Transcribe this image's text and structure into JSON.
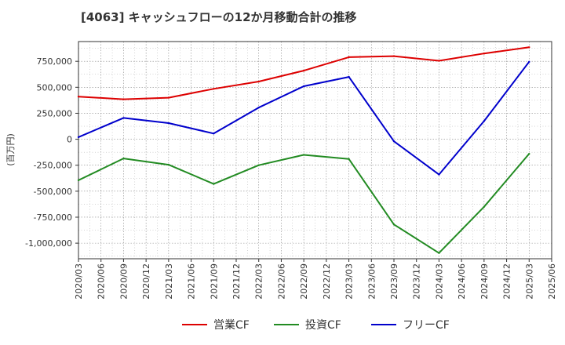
{
  "chart_data": {
    "type": "line",
    "title": "[4063]  キャッシュフローの12か月移動合計の推移",
    "ylabel": "(百万円)",
    "xlabel": "",
    "x_ticks": [
      "2020/03",
      "2020/06",
      "2020/09",
      "2020/12",
      "2021/03",
      "2021/06",
      "2021/09",
      "2021/12",
      "2022/03",
      "2022/06",
      "2022/09",
      "2022/12",
      "2023/03",
      "2023/06",
      "2023/09",
      "2023/12",
      "2024/03",
      "2024/06",
      "2024/09",
      "2024/12",
      "2025/03",
      "2025/06"
    ],
    "y_ticks": [
      {
        "value": 750000,
        "label": "750,000"
      },
      {
        "value": 500000,
        "label": "500,000"
      },
      {
        "value": 250000,
        "label": "250,000"
      },
      {
        "value": 0,
        "label": "0"
      },
      {
        "value": -250000,
        "label": "-250,000"
      },
      {
        "value": -500000,
        "label": "-500,000"
      },
      {
        "value": -750000,
        "label": "-750,000"
      },
      {
        "value": -1000000,
        "label": "-1,000,000"
      }
    ],
    "ylim": [
      -1150000,
      940000
    ],
    "x_range": [
      0,
      21
    ],
    "series": [
      {
        "name": "営業CF",
        "color": "#dd0000",
        "points": [
          {
            "x": "2020/03",
            "y": 410000
          },
          {
            "x": "2020/09",
            "y": 385000
          },
          {
            "x": "2021/03",
            "y": 400000
          },
          {
            "x": "2021/09",
            "y": 485000
          },
          {
            "x": "2022/03",
            "y": 555000
          },
          {
            "x": "2022/09",
            "y": 660000
          },
          {
            "x": "2023/03",
            "y": 790000
          },
          {
            "x": "2023/09",
            "y": 800000
          },
          {
            "x": "2024/03",
            "y": 755000
          },
          {
            "x": "2024/09",
            "y": 825000
          },
          {
            "x": "2025/03",
            "y": 885000
          }
        ]
      },
      {
        "name": "投資CF",
        "color": "#228b22",
        "points": [
          {
            "x": "2020/03",
            "y": -395000
          },
          {
            "x": "2020/09",
            "y": -185000
          },
          {
            "x": "2021/03",
            "y": -245000
          },
          {
            "x": "2021/09",
            "y": -430000
          },
          {
            "x": "2022/03",
            "y": -250000
          },
          {
            "x": "2022/09",
            "y": -150000
          },
          {
            "x": "2023/03",
            "y": -190000
          },
          {
            "x": "2023/09",
            "y": -820000
          },
          {
            "x": "2024/03",
            "y": -1095000
          },
          {
            "x": "2024/09",
            "y": -650000
          },
          {
            "x": "2025/03",
            "y": -140000
          }
        ]
      },
      {
        "name": "フリーCF",
        "color": "#0000cc",
        "points": [
          {
            "x": "2020/03",
            "y": 20000
          },
          {
            "x": "2020/09",
            "y": 205000
          },
          {
            "x": "2021/03",
            "y": 155000
          },
          {
            "x": "2021/09",
            "y": 55000
          },
          {
            "x": "2022/03",
            "y": 305000
          },
          {
            "x": "2022/09",
            "y": 510000
          },
          {
            "x": "2023/03",
            "y": 600000
          },
          {
            "x": "2023/09",
            "y": -20000
          },
          {
            "x": "2024/03",
            "y": -340000
          },
          {
            "x": "2024/09",
            "y": 175000
          },
          {
            "x": "2025/03",
            "y": 745000
          }
        ]
      }
    ],
    "legend": {
      "position": "bottom",
      "entries": [
        "営業CF",
        "投資CF",
        "フリーCF"
      ]
    },
    "grid": true
  }
}
